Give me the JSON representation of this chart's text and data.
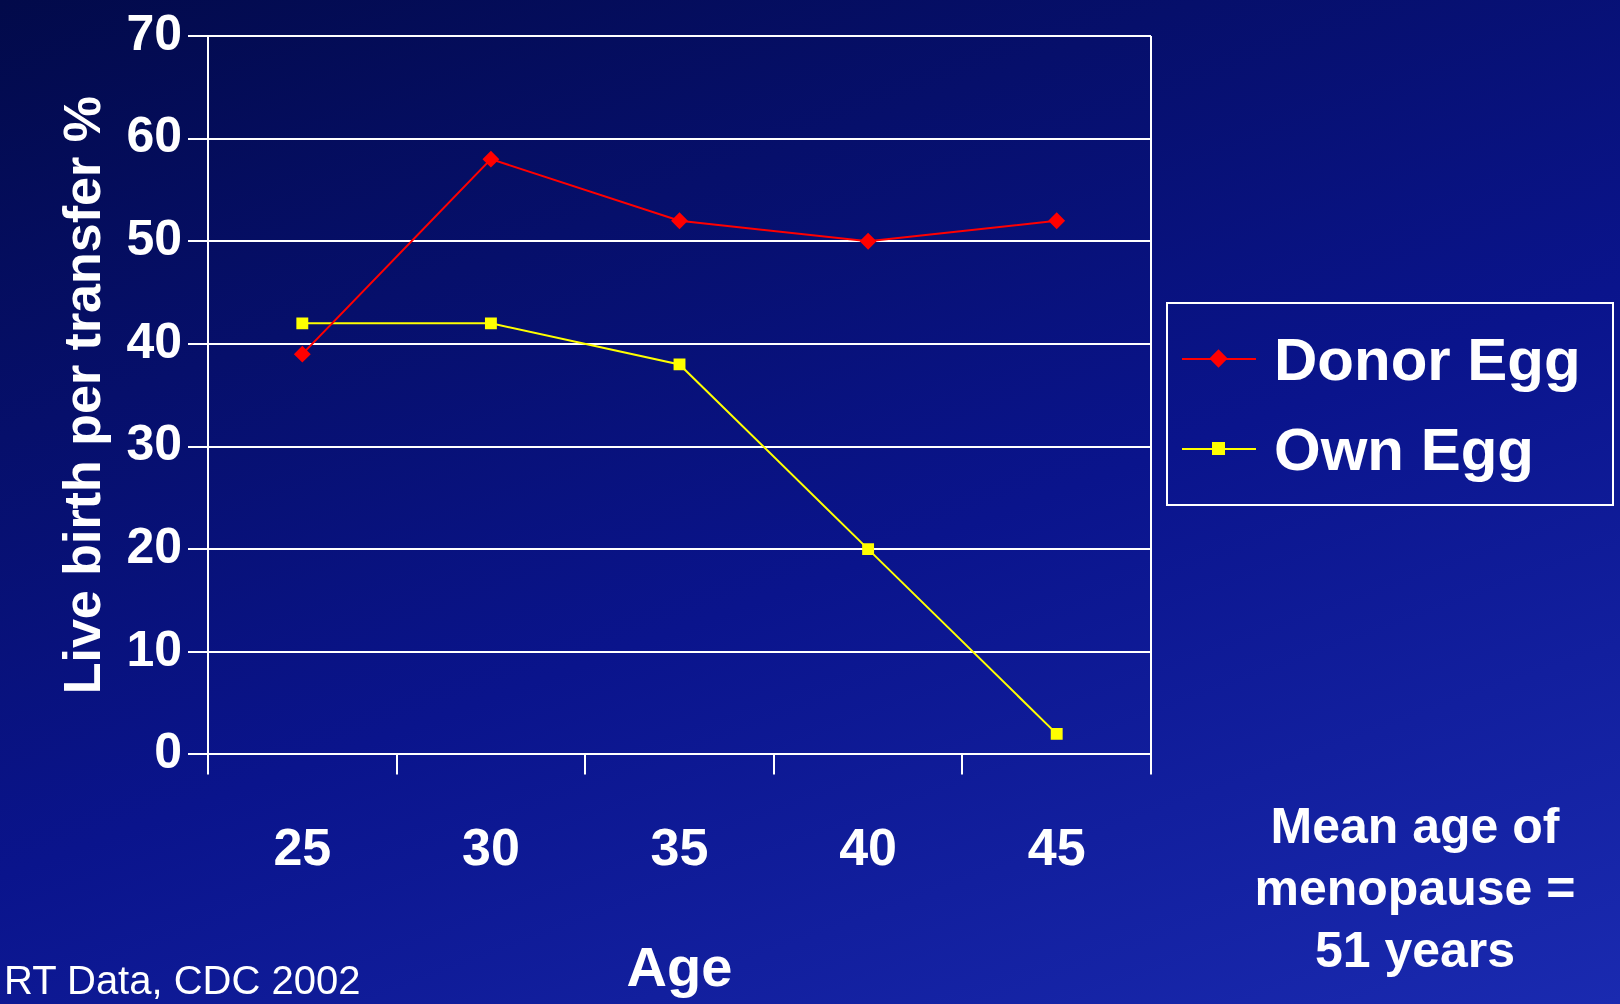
{
  "chart_data": {
    "type": "line",
    "xlabel": "Age",
    "ylabel": "Live birth per transfer %",
    "categories": [
      "25",
      "30",
      "35",
      "40",
      "45"
    ],
    "series": [
      {
        "name": "Donor Egg",
        "color": "#ff0000",
        "marker": "diamond",
        "values": [
          39,
          58,
          52,
          50,
          52
        ]
      },
      {
        "name": "Own Egg",
        "color": "#ffff00",
        "marker": "square",
        "values": [
          42,
          42,
          38,
          20,
          2
        ]
      }
    ],
    "ylim": [
      0,
      70
    ],
    "yticks": [
      0,
      10,
      20,
      30,
      40,
      50,
      60,
      70
    ],
    "grid": "y",
    "legend": "right",
    "annotations": [
      "Mean age of menopause = 51 years",
      "RT Data, CDC 2002"
    ]
  }
}
